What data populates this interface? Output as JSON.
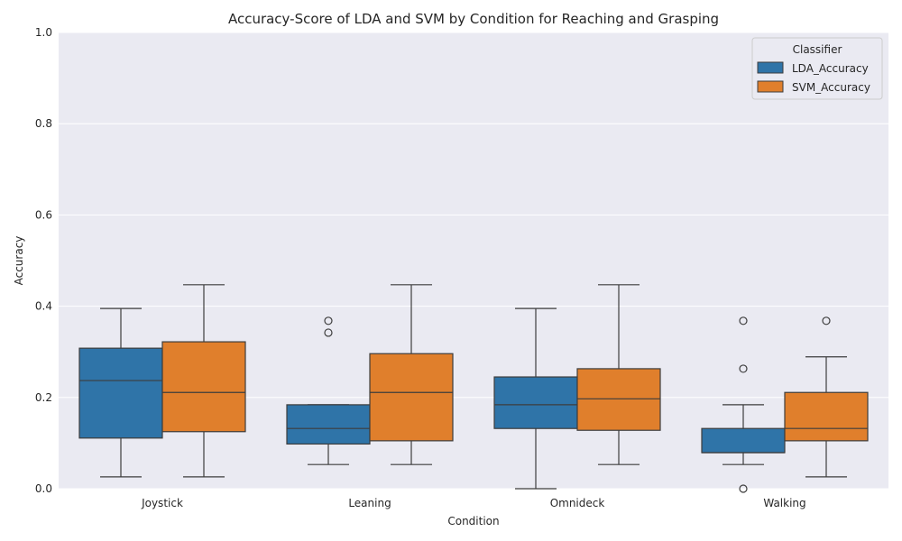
{
  "chart_data": {
    "type": "box",
    "title": "Accuracy-Score of LDA and SVM by Condition for Reaching and Grasping",
    "xlabel": "Condition",
    "ylabel": "Accuracy",
    "categories": [
      "Joystick",
      "Leaning",
      "Omnideck",
      "Walking"
    ],
    "ylim": [
      0,
      1.0
    ],
    "yticks": [
      "0.0",
      "0.2",
      "0.4",
      "0.6",
      "0.8",
      "1.0"
    ],
    "grid": true,
    "legend": {
      "title": "Classifier",
      "position": "top-right"
    },
    "series": [
      {
        "name": "LDA_Accuracy",
        "color": "#2f74a8",
        "boxes": [
          {
            "whisker_low": 0.026,
            "q1": 0.111,
            "median": 0.237,
            "q3": 0.308,
            "whisker_high": 0.395,
            "outliers": []
          },
          {
            "whisker_low": 0.053,
            "q1": 0.098,
            "median": 0.132,
            "q3": 0.184,
            "whisker_high": 0.184,
            "outliers": [
              0.342,
              0.368
            ]
          },
          {
            "whisker_low": 0.0,
            "q1": 0.132,
            "median": 0.184,
            "q3": 0.245,
            "whisker_high": 0.395,
            "outliers": []
          },
          {
            "whisker_low": 0.053,
            "q1": 0.079,
            "median": 0.079,
            "q3": 0.132,
            "whisker_high": 0.184,
            "outliers": [
              0.0,
              0.263,
              0.368
            ]
          }
        ]
      },
      {
        "name": "SVM_Accuracy",
        "color": "#e07f2c",
        "boxes": [
          {
            "whisker_low": 0.026,
            "q1": 0.125,
            "median": 0.211,
            "q3": 0.322,
            "whisker_high": 0.447,
            "outliers": []
          },
          {
            "whisker_low": 0.053,
            "q1": 0.105,
            "median": 0.211,
            "q3": 0.296,
            "whisker_high": 0.447,
            "outliers": []
          },
          {
            "whisker_low": 0.053,
            "q1": 0.128,
            "median": 0.197,
            "q3": 0.263,
            "whisker_high": 0.447,
            "outliers": []
          },
          {
            "whisker_low": 0.026,
            "q1": 0.105,
            "median": 0.132,
            "q3": 0.211,
            "whisker_high": 0.289,
            "outliers": [
              0.368
            ]
          }
        ]
      }
    ]
  }
}
